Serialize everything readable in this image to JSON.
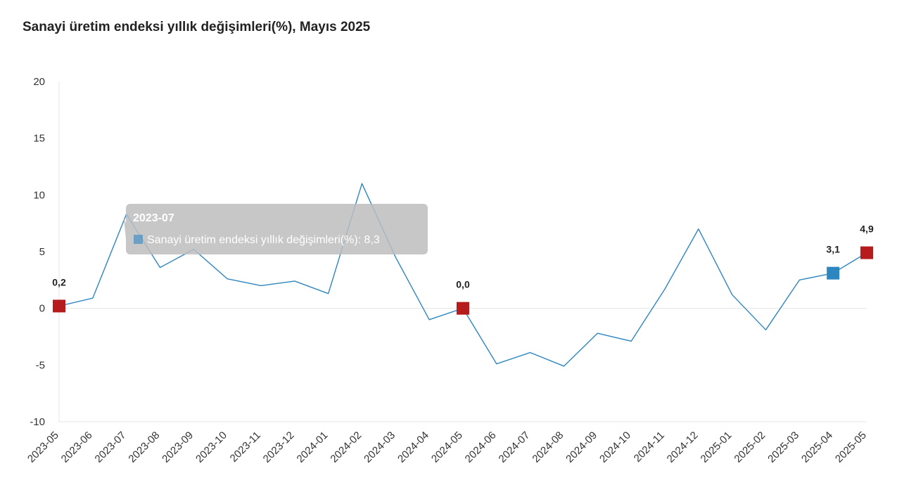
{
  "title": "Sanayi üretim endeksi yıllık değişimleri(%), Mayıs 2025",
  "chart_data": {
    "type": "line",
    "title": "Sanayi üretim endeksi yıllık değişimleri(%), Mayıs 2025",
    "xlabel": "",
    "ylabel": "",
    "ylim": [
      -10,
      20
    ],
    "yticks": [
      "20",
      "15",
      "10",
      "5",
      "0",
      "-5",
      "-10"
    ],
    "grid": "zero line only",
    "legend": "none",
    "categories": [
      "2023-05",
      "2023-06",
      "2023-07",
      "2023-08",
      "2023-09",
      "2023-10",
      "2023-11",
      "2023-12",
      "2024-01",
      "2024-02",
      "2024-03",
      "2024-04",
      "2024-05",
      "2024-06",
      "2024-07",
      "2024-08",
      "2024-09",
      "2024-10",
      "2024-11",
      "2024-12",
      "2025-01",
      "2025-02",
      "2025-03",
      "2025-04",
      "2025-05"
    ],
    "series": [
      {
        "name": "Sanayi üretim endeksi yıllık değişimleri(%)",
        "color": "#2e86c1",
        "values": [
          0.2,
          0.9,
          8.3,
          3.6,
          5.2,
          2.6,
          2.0,
          2.4,
          1.3,
          11.0,
          4.5,
          -1.0,
          0.0,
          -4.9,
          -3.9,
          -5.1,
          -2.2,
          -2.9,
          1.7,
          7.0,
          1.2,
          -1.9,
          2.5,
          3.1,
          4.9
        ]
      }
    ],
    "highlighted_points": [
      {
        "category": "2023-05",
        "label": "0,2",
        "color": "#b71c1c"
      },
      {
        "category": "2024-05",
        "label": "0,0",
        "color": "#b71c1c"
      },
      {
        "category": "2025-04",
        "label": "3,1",
        "color": "#2e86c1"
      },
      {
        "category": "2025-05",
        "label": "4,9",
        "color": "#b71c1c"
      }
    ],
    "tooltip": {
      "category": "2023-07",
      "title": "2023-07",
      "text": "Sanayi üretim endeksi yıllık değişimleri(%): 8,3"
    }
  }
}
